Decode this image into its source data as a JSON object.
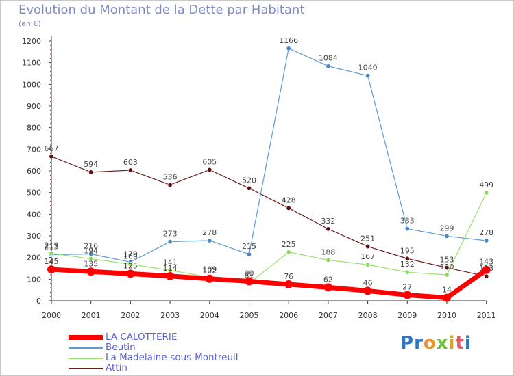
{
  "title": "Evolution du Montant de la Dette par Habitant",
  "subtitle": "(en €)",
  "logo_text": "Proxiti",
  "chart_data": {
    "type": "line",
    "title": "Evolution du Montant de la Dette par Habitant",
    "subtitle": "(en €)",
    "x": [
      "2000",
      "2001",
      "2002",
      "2003",
      "2004",
      "2005",
      "2006",
      "2007",
      "2008",
      "2009",
      "2010",
      "2011"
    ],
    "ylim": [
      0,
      1200
    ],
    "yticks": [
      0,
      100,
      200,
      300,
      400,
      500,
      600,
      700,
      800,
      900,
      1000,
      1100,
      1200
    ],
    "grid": false,
    "legend_position": "bottom-left",
    "series": [
      {
        "name": "LA CALOTTERIE",
        "color": "#ff0000",
        "values": [
          145,
          135,
          125,
          114,
          102,
          90,
          76,
          62,
          46,
          27,
          14,
          143
        ],
        "labels": [
          "145",
          "135",
          "125",
          "114",
          "102",
          "90",
          "76",
          "62",
          "46",
          "27",
          "14",
          "143"
        ]
      },
      {
        "name": "Beutin",
        "color": "#5b9bd5",
        "values": [
          213,
          216,
          179,
          273,
          278,
          215,
          1166,
          1084,
          1040,
          333,
          299,
          278
        ],
        "labels": [
          "213",
          "216",
          "179",
          "273",
          "278",
          "215",
          "1166",
          "1084",
          "1040",
          "333",
          "299",
          "278"
        ]
      },
      {
        "name": "La Madelaine-sous-Montreuil",
        "color": "#99e26b",
        "values": [
          219,
          194,
          169,
          141,
          109,
          81,
          225,
          188,
          167,
          132,
          120,
          499
        ],
        "labels": [
          "219",
          "194",
          "169",
          "141",
          "109",
          "81",
          "225",
          "188",
          "167",
          "132",
          "120",
          "499"
        ]
      },
      {
        "name": "Attin",
        "color": "#6b1a1a",
        "values": [
          667,
          594,
          603,
          536,
          605,
          520,
          428,
          332,
          251,
          195,
          153,
          113
        ],
        "labels": [
          "667",
          "594",
          "603",
          "536",
          "605",
          "520",
          "428",
          "332",
          "251",
          "195",
          "153",
          "113"
        ]
      }
    ]
  }
}
